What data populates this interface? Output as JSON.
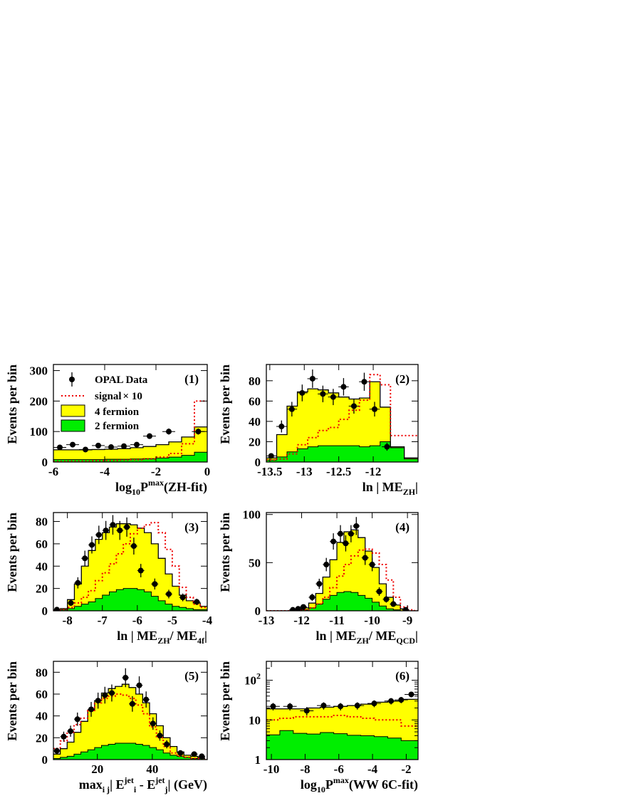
{
  "chart_data": [
    {
      "type": "histogram",
      "panel_label": "(1)",
      "ylabel": "Events per bin",
      "xlabel": {
        "base": "log",
        "sub": "10",
        "mid": "P",
        "sup": "max",
        "tail": "(ZH-fit)"
      },
      "xlim": [
        -6,
        0
      ],
      "ylim": [
        0,
        320
      ],
      "x_ticks": [
        -6,
        -4,
        -2,
        0
      ],
      "y_ticks": [
        0,
        100,
        200,
        300
      ],
      "bin_edges": [
        -6,
        -5.5,
        -5,
        -4.5,
        -4,
        -3.5,
        -3,
        -2.5,
        -2,
        -1.5,
        -1,
        -0.5,
        0
      ],
      "two_fermion": [
        8,
        8,
        8,
        8,
        9,
        9,
        10,
        11,
        13,
        16,
        22,
        32
      ],
      "four_fermion_total": [
        40,
        40,
        40,
        41,
        42,
        44,
        47,
        51,
        57,
        66,
        82,
        115
      ],
      "signal_x10": [
        2,
        3,
        3,
        4,
        5,
        6,
        7,
        10,
        16,
        28,
        60,
        200
      ],
      "data": [
        48,
        57,
        41,
        54,
        49,
        52,
        57,
        85,
        100,
        100
      ],
      "data_x": [
        -5.75,
        -5.25,
        -4.75,
        -4.25,
        -3.75,
        -3.25,
        -2.75,
        -2.25,
        -1.5,
        -0.35
      ],
      "legend": [
        "OPAL Data",
        "signal×10",
        "4 fermion",
        "2 fermion"
      ]
    },
    {
      "type": "histogram",
      "panel_label": "(2)",
      "ylabel": "Events per bin",
      "xlabel": {
        "base": "ln | ME",
        "sub": "ZH",
        "tail": "|"
      },
      "xlim": [
        -13.55,
        -11.35
      ],
      "ylim": [
        0,
        96
      ],
      "x_ticks": [
        -13.5,
        -13,
        -12.5,
        -12
      ],
      "y_ticks": [
        0,
        20,
        40,
        60,
        80
      ],
      "bin_edges": [
        -13.55,
        -13.4,
        -13.25,
        -13.1,
        -12.95,
        -12.8,
        -12.65,
        -12.5,
        -12.35,
        -12.2,
        -12.05,
        -11.9,
        -11.75,
        -11.55,
        -11.35
      ],
      "two_fermion": [
        2,
        5,
        10,
        13,
        15,
        16,
        16,
        16,
        16,
        15,
        16,
        20,
        14,
        3
      ],
      "four_fermion_total": [
        4,
        27,
        55,
        69,
        72,
        71,
        68,
        64,
        62,
        63,
        79,
        54,
        15,
        4
      ],
      "signal_x10": [
        2,
        3,
        8,
        17,
        24,
        31,
        34,
        42,
        51,
        61,
        86,
        76,
        26,
        26
      ],
      "data": [
        6,
        35,
        52,
        68,
        82,
        67,
        64,
        74,
        55,
        79,
        52,
        15
      ],
      "data_x": [
        -13.48,
        -13.33,
        -13.18,
        -13.03,
        -12.88,
        -12.73,
        -12.58,
        -12.43,
        -12.28,
        -12.13,
        -11.98,
        -11.8
      ]
    },
    {
      "type": "histogram",
      "panel_label": "(3)",
      "ylabel": "Events per bin",
      "xlabel": {
        "base": "ln | ME",
        "sub": "ZH",
        "mid": "/ ME",
        "sub2": "4f",
        "tail": "|"
      },
      "xlim": [
        -8.4,
        -4
      ],
      "ylim": [
        0,
        88
      ],
      "x_ticks": [
        -8,
        -7,
        -6,
        -5,
        -4
      ],
      "y_ticks": [
        0,
        20,
        40,
        60,
        80
      ],
      "bin_edges": [
        -8.4,
        -8.2,
        -8,
        -7.8,
        -7.6,
        -7.4,
        -7.2,
        -7,
        -6.8,
        -6.6,
        -6.4,
        -6.2,
        -6,
        -5.8,
        -5.6,
        -5.4,
        -5.2,
        -5,
        -4.8,
        -4.6,
        -4.4,
        -4.2,
        -4
      ],
      "two_fermion": [
        0,
        1,
        2,
        4,
        6,
        8,
        11,
        14,
        17,
        19,
        20,
        20,
        19,
        17,
        13,
        9,
        6,
        4,
        3,
        2,
        1,
        1
      ],
      "four_fermion_total": [
        0,
        2,
        10,
        24,
        40,
        54,
        64,
        70,
        75,
        78,
        78,
        77,
        74,
        70,
        60,
        47,
        33,
        22,
        14,
        9,
        7,
        4
      ],
      "signal_x10": [
        0,
        1,
        3,
        7,
        12,
        18,
        27,
        34,
        42,
        51,
        60,
        69,
        74,
        77,
        79,
        70,
        55,
        40,
        21,
        12,
        6,
        3
      ],
      "data": [
        1,
        7,
        25,
        47,
        59,
        68,
        72,
        77,
        72,
        75,
        58,
        36,
        24,
        15,
        12,
        8
      ],
      "data_x": [
        -8.3,
        -7.9,
        -7.7,
        -7.5,
        -7.3,
        -7.1,
        -6.9,
        -6.7,
        -6.5,
        -6.3,
        -6.1,
        -5.9,
        -5.5,
        -5.1,
        -4.7,
        -4.3
      ]
    },
    {
      "type": "histogram",
      "panel_label": "(4)",
      "ylabel": "Events per bin",
      "xlabel": {
        "base": "ln | ME",
        "sub": "ZH",
        "mid": "/ ME",
        "sub2": "QCD",
        "tail": "|"
      },
      "xlim": [
        -13,
        -8.7
      ],
      "ylim": [
        0,
        102
      ],
      "x_ticks": [
        -13,
        -12,
        -11,
        -10,
        -9
      ],
      "y_ticks": [
        0,
        50,
        100
      ],
      "bin_edges": [
        -13,
        -12.8,
        -12.6,
        -12.4,
        -12.2,
        -12,
        -11.8,
        -11.6,
        -11.4,
        -11.2,
        -11,
        -10.8,
        -10.6,
        -10.4,
        -10.2,
        -10,
        -9.8,
        -9.6,
        -9.4,
        -9.2,
        -9,
        -8.8,
        -8.7
      ],
      "two_fermion": [
        0,
        0,
        0,
        0,
        0,
        1,
        3,
        7,
        12,
        16,
        19,
        20,
        19,
        16,
        13,
        9,
        5,
        2,
        1,
        0,
        0,
        0
      ],
      "four_fermion_total": [
        0,
        0,
        0,
        0,
        1,
        3,
        8,
        18,
        35,
        53,
        71,
        82,
        84,
        76,
        62,
        45,
        28,
        14,
        6,
        2,
        0,
        0
      ],
      "signal_x10": [
        0,
        0,
        0,
        0,
        0,
        1,
        3,
        7,
        14,
        24,
        36,
        48,
        57,
        63,
        64,
        60,
        48,
        32,
        14,
        4,
        1,
        0
      ],
      "data": [
        1,
        2,
        4,
        14,
        28,
        48,
        72,
        80,
        70,
        80,
        88,
        55,
        48,
        20,
        12,
        7,
        1
      ],
      "data_x": [
        -12.25,
        -12.1,
        -11.95,
        -11.7,
        -11.5,
        -11.3,
        -11.1,
        -10.9,
        -10.75,
        -10.6,
        -10.45,
        -10.2,
        -10.0,
        -9.8,
        -9.6,
        -9.4,
        -9.05
      ]
    },
    {
      "type": "histogram",
      "panel_label": "(5)",
      "ylabel": "Events per bin",
      "xlabel": {
        "base": "max",
        "sub": "i j",
        "mid": "| E",
        "sup": "jet",
        "sub2": "i",
        "mid2": " - E",
        "sup2": "jet",
        "sub3": "j",
        "tail": "| (GeV)"
      },
      "xlim": [
        4,
        60
      ],
      "ylim": [
        0,
        90
      ],
      "x_ticks": [
        20,
        40
      ],
      "y_ticks": [
        0,
        20,
        40,
        60,
        80
      ],
      "bin_edges": [
        4,
        6.5,
        9,
        11.5,
        14,
        16.5,
        19,
        21.5,
        24,
        26.5,
        29,
        31.5,
        34,
        36.5,
        39,
        41.5,
        44,
        46.5,
        49,
        51.5,
        54,
        56.5,
        59,
        60
      ],
      "two_fermion": [
        1,
        2,
        3,
        5,
        7,
        9,
        11,
        13,
        14,
        15,
        15,
        15,
        14,
        13,
        11,
        9,
        6,
        4,
        3,
        2,
        1,
        1,
        0
      ],
      "four_fermion_total": [
        5,
        10,
        16,
        25,
        35,
        45,
        54,
        61,
        65,
        67,
        69,
        66,
        60,
        52,
        42,
        31,
        20,
        12,
        7,
        4,
        3,
        2,
        0
      ],
      "signal_x10": [
        10,
        17,
        25,
        32,
        38,
        45,
        52,
        56,
        58,
        60,
        59,
        56,
        50,
        42,
        30,
        20,
        12,
        6,
        3,
        2,
        1,
        1,
        0
      ],
      "data": [
        8,
        21,
        26,
        37,
        46,
        54,
        59,
        61,
        75,
        51,
        68,
        55,
        33,
        22,
        14,
        6,
        5,
        3
      ],
      "data_x": [
        5.25,
        7.75,
        10.25,
        12.75,
        17.75,
        20.25,
        22.75,
        25.25,
        30.25,
        32.75,
        35.25,
        37.75,
        40.25,
        42.75,
        45.25,
        50.25,
        55.25,
        58
      ]
    },
    {
      "type": "histogram",
      "panel_label": "(6)",
      "ylabel": "Events per bin",
      "xlabel": {
        "base": "log",
        "sub": "10",
        "mid": "P",
        "sup": "max",
        "tail": "(WW 6C-fit)"
      },
      "xlim": [
        -10.3,
        -1.3
      ],
      "ylim": [
        1,
        300
      ],
      "yscale": "log",
      "x_ticks": [
        -10,
        -8,
        -6,
        -4,
        -2
      ],
      "y_ticks": [
        "1",
        "10",
        "10^2"
      ],
      "bin_edges": [
        -10.3,
        -9.5,
        -8.7,
        -7.9,
        -7.1,
        -6.3,
        -5.5,
        -4.7,
        -3.9,
        -3.1,
        -2.3,
        -1.5,
        -1.3
      ],
      "two_fermion": [
        4.2,
        5.4,
        4.6,
        4.4,
        4.8,
        4.5,
        4.1,
        4.0,
        3.8,
        3.5,
        3.0,
        3.0
      ],
      "four_fermion_total": [
        19,
        19,
        19,
        20,
        21,
        22,
        23,
        25,
        28,
        30,
        33,
        33
      ],
      "signal_x10": [
        10,
        11,
        12,
        12,
        12,
        13,
        12,
        11,
        10,
        10,
        7,
        7
      ],
      "data": [
        22,
        22,
        17,
        23,
        22,
        23,
        26,
        30,
        32,
        44
      ],
      "data_x": [
        -9.9,
        -8.9,
        -7.9,
        -6.9,
        -5.9,
        -4.9,
        -3.9,
        -2.9,
        -2.3,
        -1.7
      ]
    }
  ],
  "legend": {
    "data_label": "OPAL Data",
    "signal_label_prefix": "signal",
    "signal_label_suffix": "× 10",
    "four_fermion_label": "4 fermion",
    "two_fermion_label": "2 fermion"
  },
  "colors": {
    "four_fermion": "#ffff00",
    "two_fermion": "#00ee00",
    "signal": "#ee0000",
    "data": "#000000"
  }
}
